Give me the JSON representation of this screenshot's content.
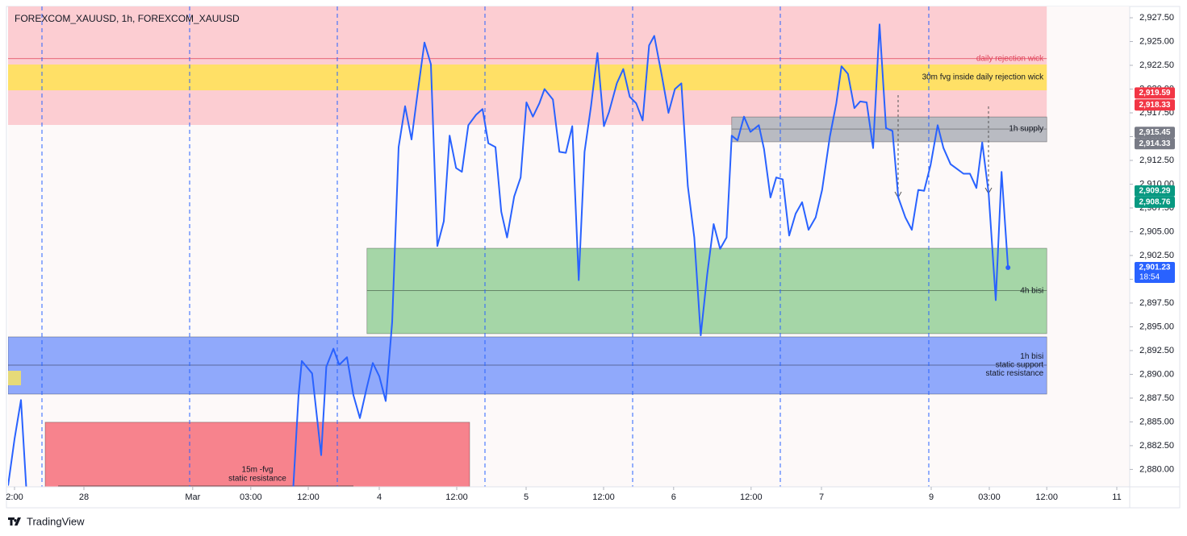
{
  "chart_data": {
    "type": "line",
    "title": "FOREXCOM_XAUUSD, 1h, FOREXCOM_XAUUSD",
    "color": "#2962ff",
    "x": [
      0,
      1,
      2,
      3,
      44,
      45,
      45.5,
      47.1,
      48.5,
      49.3,
      50.4,
      51.3,
      52.5,
      53.5,
      54.5,
      55.6,
      56.5,
      57.5,
      58.5,
      59.5,
      60.5,
      61.5,
      62.5,
      63.5,
      64.5,
      65.5,
      66.5,
      67.5,
      68.4,
      69.4,
      70.3,
      71.3,
      72.5,
      73.5,
      74.4,
      75.5,
      76.4,
      77.3,
      78.4,
      79.4,
      80.3,
      81.3,
      82.3,
      83.1,
      84.4,
      85.4,
      86.4,
      87.4,
      88.4,
      89.3,
      90.3,
      91.3,
      92.3,
      93.1,
      94.3,
      95.3,
      96.3,
      97.3,
      98.3,
      99.3,
      100.1,
      101.3,
      102.3,
      103.3,
      104.3,
      105.3,
      106.3,
      107.3,
      108.3,
      109.3,
      110.3,
      111.3,
      112.1,
      113,
      114,
      115,
      116.3,
      117.1,
      118.1,
      119,
      120,
      121,
      122,
      123,
      124,
      125.1,
      126.1,
      127.3,
      128.3,
      129.1,
      130.1,
      131.1,
      132,
      133,
      134,
      135,
      136,
      137,
      137.9,
      139,
      140,
      141,
      141.9,
      142.9,
      144,
      144.9,
      146,
      147,
      148,
      149,
      150,
      150.9,
      151.9,
      153,
      153.9,
      154.9
    ],
    "values": [
      2878.3,
      2883.2,
      2887.3,
      2876,
      2876,
      2887.8,
      2891.4,
      2890.1,
      2881.5,
      2890.8,
      2892.7,
      2891.0,
      2891.8,
      2887.8,
      2885.4,
      2888.7,
      2891.2,
      2889.8,
      2887.2,
      2895.5,
      2913.9,
      2918.2,
      2914.7,
      2919.9,
      2924.9,
      2922.6,
      2903.5,
      2906.1,
      2915.1,
      2911.7,
      2911.3,
      2916.2,
      2917.3,
      2917.9,
      2914.3,
      2913.9,
      2907.1,
      2904.4,
      2908.7,
      2910.7,
      2918.6,
      2917.1,
      2918.5,
      2920.0,
      2918.9,
      2913.4,
      2913.3,
      2916.1,
      2899.9,
      2913.4,
      2918.2,
      2923.8,
      2916.1,
      2917.6,
      2920.6,
      2922.1,
      2919.2,
      2918.5,
      2916.7,
      2924.6,
      2925.6,
      2921.3,
      2917.5,
      2920.0,
      2920.6,
      2909.8,
      2904.4,
      2894.1,
      2900.5,
      2905.8,
      2903.2,
      2904.4,
      2915.1,
      2914.6,
      2917.1,
      2915.5,
      2916.2,
      2913.7,
      2908.6,
      2910.7,
      2910.5,
      2904.6,
      2906.9,
      2908.1,
      2905.2,
      2906.5,
      2909.4,
      2915.0,
      2918.5,
      2922.4,
      2921.6,
      2918.0,
      2918.7,
      2918.6,
      2913.8,
      2926.8,
      2915.9,
      2915.6,
      2908.6,
      2906.5,
      2905.2,
      2909.4,
      2909.3,
      2912.0,
      2916.2,
      2913.8,
      2912.1,
      2911.6,
      2911.1,
      2911.1,
      2909.6,
      2914.4,
      2909.0,
      2897.8,
      2911.3,
      2901.23
    ],
    "xlim": [
      0,
      173.75
    ],
    "xticks": [
      {
        "value": 1,
        "label": "2:00"
      },
      {
        "value": 11.75,
        "label": "28"
      },
      {
        "value": 28.6,
        "label": "Mar"
      },
      {
        "value": 37.6,
        "label": "03:00"
      },
      {
        "value": 46.5,
        "label": "12:00"
      },
      {
        "value": 57.5,
        "label": "4"
      },
      {
        "value": 69.5,
        "label": "12:00"
      },
      {
        "value": 80.25,
        "label": "5"
      },
      {
        "value": 92.25,
        "label": "12:00"
      },
      {
        "value": 103.1,
        "label": "6"
      },
      {
        "value": 115.1,
        "label": "12:00"
      },
      {
        "value": 126,
        "label": "7"
      },
      {
        "value": 143,
        "label": "9"
      },
      {
        "value": 152,
        "label": "03:00"
      },
      {
        "value": 160.9,
        "label": "12:00"
      },
      {
        "value": 171.75,
        "label": "11"
      }
    ],
    "ylim": [
      2878.17,
      2928.69
    ],
    "yticks": [
      {
        "value": 2927.5,
        "label": "2,927.50"
      },
      {
        "value": 2925,
        "label": "2,925.00"
      },
      {
        "value": 2922.5,
        "label": "2,922.50"
      },
      {
        "value": 2920,
        "label": "2,920.00"
      },
      {
        "value": 2917.5,
        "label": "2,917.50"
      },
      {
        "value": 2915,
        "label": "2,915.00"
      },
      {
        "value": 2912.5,
        "label": "2,912.50"
      },
      {
        "value": 2910,
        "label": "2,910.00"
      },
      {
        "value": 2907.5,
        "label": "2,907.50"
      },
      {
        "value": 2905,
        "label": "2,905.00"
      },
      {
        "value": 2902.5,
        "label": "2,902.50"
      },
      {
        "value": 2900,
        "label": "2,900.00"
      },
      {
        "value": 2897.5,
        "label": "2,897.50"
      },
      {
        "value": 2895,
        "label": "2,895.00"
      },
      {
        "value": 2892.5,
        "label": "2,892.50"
      },
      {
        "value": 2890,
        "label": "2,890.00"
      },
      {
        "value": 2887.5,
        "label": "2,887.50"
      },
      {
        "value": 2885,
        "label": "2,885.00"
      },
      {
        "value": 2882.5,
        "label": "2,882.50"
      },
      {
        "value": 2880,
        "label": "2,880.00"
      }
    ],
    "zones": [
      {
        "top": 2928.69,
        "bottom": 2916.23,
        "x0": 0,
        "x1": 160.9,
        "color": "#fccdd2"
      },
      {
        "top": 2922.58,
        "bottom": 2919.87,
        "x0": 0,
        "x1": 160.9,
        "color": "#ffe066",
        "labels": [
          "30m fvg inside daily rejection wick"
        ],
        "label_pos": "right"
      },
      {
        "top": 2917.07,
        "bottom": 2914.45,
        "x0": 112.1,
        "x1": 160.9,
        "color": "#b9bbc2",
        "mid": 2915.8,
        "labels": [
          "1h supply"
        ],
        "label_pos": "right"
      },
      {
        "top": 2903.26,
        "bottom": 2894.28,
        "x0": 55.6,
        "x1": 160.9,
        "color": "#a5d6a7",
        "mid": 2898.8,
        "labels": [
          "4h bisi"
        ],
        "label_pos": "right"
      },
      {
        "top": 2893.94,
        "bottom": 2887.92,
        "x0": 0,
        "x1": 160.9,
        "color": "#90a9fb",
        "mid": 2890.97,
        "labels": [
          "1h bisi",
          "static support",
          "static resistance"
        ],
        "label_pos": "right"
      },
      {
        "top": 2884.96,
        "bottom": 2877,
        "x0": 5.75,
        "x1": 71.5,
        "color": "#f7838d",
        "labels": [
          "15m -fvg",
          "static resistance"
        ],
        "label_pos": "bottom"
      }
    ],
    "levels": [
      {
        "value": 2923.2,
        "x0": 0,
        "x1": 160.9,
        "color": "#e0435a",
        "label": "daily rejection wick"
      },
      {
        "value": 2878.26,
        "x0": 7.75,
        "x1": 53.5,
        "color": "#333333"
      }
    ],
    "price_tags": [
      {
        "value": 2919.59,
        "label": "2,919.59",
        "color": "#f23645"
      },
      {
        "value": 2918.33,
        "label": "2,918.33",
        "color": "#f23645"
      },
      {
        "value": 2915.45,
        "label": "2,915.45",
        "color": "#787b86"
      },
      {
        "value": 2914.33,
        "label": "2,914.33",
        "color": "#787b86"
      },
      {
        "value": 2909.29,
        "label": "2,909.29",
        "color": "#089981"
      },
      {
        "value": 2908.76,
        "label": "2,908.76",
        "color": "#089981"
      },
      {
        "value": 2901.23,
        "label": "2,901.23",
        "color": "#2962ff",
        "sub": "18:54"
      }
    ]
  },
  "footer": {
    "brand": "TradingView"
  }
}
